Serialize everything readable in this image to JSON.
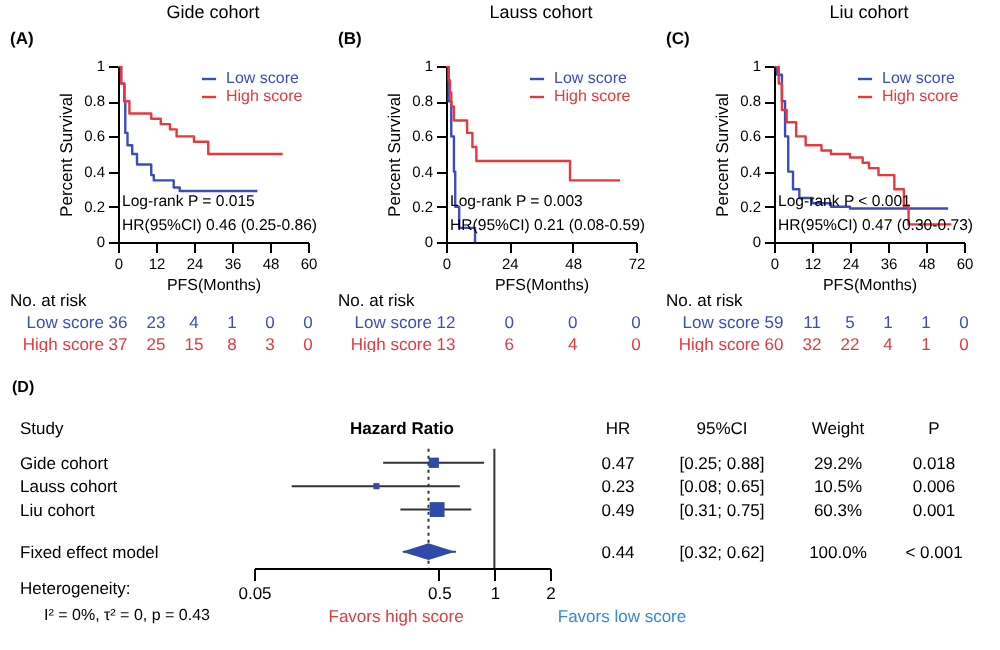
{
  "chart_data": [
    {
      "type": "step",
      "title": "Gide cohort",
      "xlabel": "PFS(Months)",
      "ylabel": "Percent Survival",
      "xlim": [
        0,
        60
      ],
      "xticks": [
        0,
        12,
        24,
        36,
        48,
        60
      ],
      "ylim": [
        0,
        1
      ],
      "yticks": [
        0,
        0.2,
        0.4,
        0.6,
        0.8,
        1
      ],
      "legend": "top right",
      "series": [
        {
          "name": "Low score",
          "color": "#3c4cbf",
          "x": [
            0,
            1,
            2,
            2.3,
            3,
            4.5,
            6,
            10.5,
            11.3,
            17.6,
            19.5,
            44
          ],
          "values": [
            1,
            0.9,
            0.8,
            0.62,
            0.55,
            0.5,
            0.44,
            0.38,
            0.35,
            0.31,
            0.29,
            0.29
          ]
        },
        {
          "name": "High score",
          "color": "#e8383d",
          "x": [
            0,
            1,
            2,
            3.6,
            10.5,
            13.5,
            16.4,
            18.5,
            24,
            28.5,
            52
          ],
          "values": [
            1,
            0.9,
            0.8,
            0.73,
            0.7,
            0.67,
            0.64,
            0.6,
            0.57,
            0.5,
            0.5
          ]
        }
      ],
      "annotations": [
        "(A)",
        "Log-rank P = 0.015",
        "HR(95%CI) 0.46 (0.25-0.86)",
        "No. at risk",
        "Low score 36 23 4 1 0 0",
        "High score 37 25 15 8 3 0"
      ]
    },
    {
      "type": "step",
      "title": "Lauss cohort",
      "xlabel": "PFS(Months)",
      "ylabel": "Percent Survival",
      "xlim": [
        0,
        72
      ],
      "xticks": [
        0,
        24,
        48,
        72
      ],
      "ylim": [
        0,
        1
      ],
      "yticks": [
        0,
        0.2,
        0.4,
        0.6,
        0.8,
        1
      ],
      "legend": "top right",
      "series": [
        {
          "name": "Low score",
          "color": "#3c4cbf",
          "x": [
            0,
            1,
            2,
            3,
            3.5,
            5,
            11
          ],
          "values": [
            1,
            0.8,
            0.6,
            0.4,
            0.2,
            0.08,
            0
          ]
        },
        {
          "name": "High score",
          "color": "#e8383d",
          "x": [
            0,
            1,
            1.5,
            2,
            3,
            8,
            10,
            11.5,
            47,
            66
          ],
          "values": [
            1,
            0.92,
            0.85,
            0.77,
            0.69,
            0.62,
            0.54,
            0.46,
            0.35,
            0.35
          ]
        }
      ],
      "annotations": [
        "(B)",
        "Log-rank P = 0.003",
        "HR(95%CI) 0.21 (0.08-0.59)",
        "No. at risk",
        "Low score 12 0 0 0",
        "High score 13 6 4 0"
      ]
    },
    {
      "type": "step",
      "title": "Liu cohort",
      "xlabel": "PFS(Months)",
      "ylabel": "Percent Survival",
      "xlim": [
        0,
        60
      ],
      "xticks": [
        0,
        12,
        24,
        36,
        48,
        60
      ],
      "ylim": [
        0,
        1
      ],
      "yticks": [
        0,
        0.2,
        0.4,
        0.6,
        0.8,
        1
      ],
      "legend": "top right",
      "series": [
        {
          "name": "Low score",
          "color": "#3c4cbf",
          "x": [
            0,
            1,
            2.5,
            3.5,
            4.5,
            6,
            8,
            12,
            18,
            24,
            55
          ],
          "values": [
            1,
            0.95,
            0.8,
            0.6,
            0.4,
            0.3,
            0.25,
            0.22,
            0.2,
            0.19,
            0.19
          ]
        },
        {
          "name": "High score",
          "color": "#e8383d",
          "x": [
            0,
            1.5,
            2.5,
            4,
            7,
            10,
            15,
            18,
            24,
            28,
            30,
            33,
            38,
            41,
            42.5,
            56
          ],
          "values": [
            1,
            0.9,
            0.75,
            0.68,
            0.6,
            0.55,
            0.52,
            0.5,
            0.48,
            0.45,
            0.42,
            0.38,
            0.3,
            0.2,
            0.1,
            0.1
          ]
        }
      ],
      "annotations": [
        "(C)",
        "Log-rank P < 0.001",
        "HR(95%CI) 0.47 (0.30-0.73)",
        "No. at risk",
        "Low score 59 11 5 1 1 0",
        "High score 60 32 22 4 1 0"
      ]
    },
    {
      "type": "scatter",
      "orientation": "horizontal",
      "xlabel": "Hazard Ratio",
      "log": "x",
      "xlim": [
        0.05,
        2
      ],
      "xticks": [
        0.05,
        0.5,
        1,
        2
      ],
      "categories": [
        "Gide cohort",
        "Lauss cohort",
        "Liu cohort",
        "Fixed effect model"
      ],
      "series": [
        {
          "color": "#2f4aa8",
          "marker": "square",
          "values": [
            0.47,
            0.23,
            0.49,
            null
          ],
          "errors": [
            [
              0.25,
              0.88
            ],
            [
              0.08,
              0.65
            ],
            [
              0.31,
              0.75
            ],
            null
          ],
          "sizes": [
            0.48,
            0.17,
            1,
            null
          ]
        },
        {
          "color": "#2f4aa8",
          "marker": "diamond",
          "values": [
            null,
            null,
            null,
            0.44
          ],
          "errors": [
            null,
            null,
            null,
            [
              0.32,
              0.62
            ]
          ]
        }
      ],
      "ref_lines": [
        {
          "axis": "x",
          "value": 1,
          "line_style": "solid"
        },
        {
          "axis": "x",
          "value": 0.44,
          "line_style": "dotted"
        }
      ],
      "annotations": [
        "(D)",
        "Study",
        "HR",
        "95%CI",
        "Weight",
        "P",
        "0.47",
        "[0.25; 0.88]",
        "29.2%",
        "0.018",
        "0.23",
        "[0.08; 0.65]",
        "10.5%",
        "0.006",
        "0.49",
        "[0.31; 0.75]",
        "60.3%",
        "0.001",
        "0.44",
        "[0.32; 0.62]",
        "100.0%",
        "< 0.001",
        "Heterogeneity:",
        "I² = 0%, τ² = 0, p = 0.43",
        "Favors high score",
        "Favors low score"
      ]
    }
  ]
}
